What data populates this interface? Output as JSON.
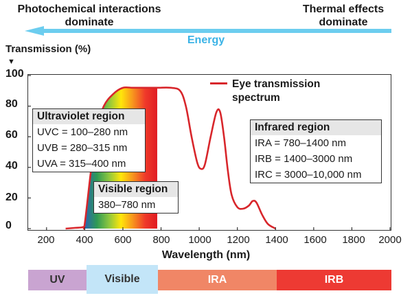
{
  "header": {
    "left_line1": "Photochemical interactions",
    "left_line2": "dominate",
    "right_line1": "Thermal effects",
    "right_line2": "dominate",
    "energy_label": "Energy",
    "arrow_color": "#6ccdef",
    "energy_color": "#3bb3e6"
  },
  "chart_data": {
    "type": "line",
    "ylabel": "Transmission (%)",
    "xlabel": "Wavelength (nm)",
    "xlim": [
      100,
      2000
    ],
    "ylim": [
      0,
      100
    ],
    "xticks": [
      200,
      400,
      600,
      800,
      1000,
      1200,
      1400,
      1600,
      1800,
      2000
    ],
    "yticks": [
      0,
      20,
      40,
      60,
      80,
      100
    ],
    "grid": false,
    "series": [
      {
        "name": "Eye transmission spectrum",
        "color": "#d8262b",
        "x": [
          300,
          350,
          390,
          400,
          430,
          460,
          500,
          550,
          600,
          650,
          700,
          780,
          850,
          900,
          930,
          960,
          990,
          1010,
          1030,
          1060,
          1090,
          1110,
          1130,
          1150,
          1170,
          1200,
          1230,
          1260,
          1280,
          1300,
          1330,
          1360,
          1400
        ],
        "y": [
          0,
          0.5,
          1,
          3,
          35,
          64,
          80,
          88,
          92,
          92,
          92,
          92,
          92,
          90,
          80,
          60,
          43,
          39,
          42,
          60,
          76,
          76,
          60,
          38,
          22,
          14,
          13,
          15,
          18,
          17,
          9,
          3,
          0
        ]
      }
    ],
    "visible_fill": {
      "x_start": 400,
      "x_end": 780,
      "gradient": [
        "#2a64b0",
        "#2e9a55",
        "#8cc63f",
        "#ffe60a",
        "#f7931e",
        "#ef3a2a",
        "#e01b22"
      ]
    }
  },
  "legend": {
    "label_line1": "Eye transmission",
    "label_line2": "spectrum"
  },
  "uv_box": {
    "title": "Ultraviolet region",
    "lines": [
      "UVC = 100–280 nm",
      "UVB = 280–315 nm",
      "UVA = 315–400 nm"
    ]
  },
  "visible_box": {
    "title": "Visible region",
    "line": "380–780 nm"
  },
  "ir_box": {
    "title": "Infrared region",
    "lines": [
      "IRA = 780–1400 nm",
      "IRB = 1400–3000 nm",
      "IRC = 3000–10,000 nm"
    ]
  },
  "bands": {
    "uv": "UV",
    "visible": "Visible",
    "ira": "IRA",
    "irb": "IRB"
  }
}
